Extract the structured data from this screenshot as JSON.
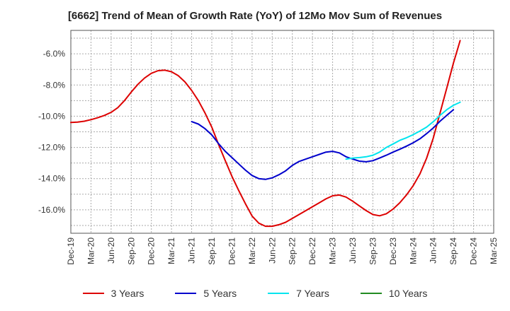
{
  "chart_data": {
    "type": "line",
    "title": "[6662]  Trend of Mean of Growth Rate (YoY) of 12Mo Mov Sum of Revenues",
    "xlabel": "",
    "ylabel": "",
    "x_ticks": [
      "Dec-19",
      "Mar-20",
      "Jun-20",
      "Sep-20",
      "Dec-20",
      "Mar-21",
      "Jun-21",
      "Sep-21",
      "Dec-21",
      "Mar-22",
      "Jun-22",
      "Sep-22",
      "Dec-22",
      "Mar-23",
      "Jun-23",
      "Sep-23",
      "Dec-23",
      "Mar-24",
      "Jun-24",
      "Sep-24",
      "Dec-24",
      "Mar-25"
    ],
    "y_ticks": [
      "-6.0%",
      "-8.0%",
      "-10.0%",
      "-12.0%",
      "-14.0%",
      "-16.0%"
    ],
    "y_tick_values": [
      -6,
      -8,
      -10,
      -12,
      -14,
      -16
    ],
    "ylim": [
      -17.5,
      -4.5
    ],
    "x_range_months": [
      0,
      63
    ],
    "grid": true,
    "legend_position": "bottom",
    "series": [
      {
        "name": "3 Years",
        "color": "#dd0000",
        "points": [
          [
            0,
            -10.4
          ],
          [
            1,
            -10.38
          ],
          [
            2,
            -10.32
          ],
          [
            3,
            -10.22
          ],
          [
            4,
            -10.1
          ],
          [
            5,
            -9.95
          ],
          [
            6,
            -9.75
          ],
          [
            7,
            -9.45
          ],
          [
            8,
            -9.0
          ],
          [
            9,
            -8.45
          ],
          [
            10,
            -7.95
          ],
          [
            11,
            -7.55
          ],
          [
            12,
            -7.25
          ],
          [
            13,
            -7.08
          ],
          [
            14,
            -7.05
          ],
          [
            15,
            -7.15
          ],
          [
            16,
            -7.4
          ],
          [
            17,
            -7.8
          ],
          [
            18,
            -8.35
          ],
          [
            19,
            -9.0
          ],
          [
            20,
            -9.8
          ],
          [
            21,
            -10.7
          ],
          [
            22,
            -11.8
          ],
          [
            23,
            -12.85
          ],
          [
            24,
            -13.85
          ],
          [
            25,
            -14.75
          ],
          [
            26,
            -15.6
          ],
          [
            27,
            -16.4
          ],
          [
            28,
            -16.85
          ],
          [
            29,
            -17.05
          ],
          [
            30,
            -17.05
          ],
          [
            31,
            -16.95
          ],
          [
            32,
            -16.8
          ],
          [
            33,
            -16.55
          ],
          [
            34,
            -16.3
          ],
          [
            35,
            -16.05
          ],
          [
            36,
            -15.8
          ],
          [
            37,
            -15.55
          ],
          [
            38,
            -15.3
          ],
          [
            39,
            -15.1
          ],
          [
            40,
            -15.05
          ],
          [
            41,
            -15.18
          ],
          [
            42,
            -15.45
          ],
          [
            43,
            -15.75
          ],
          [
            44,
            -16.05
          ],
          [
            45,
            -16.3
          ],
          [
            46,
            -16.38
          ],
          [
            47,
            -16.25
          ],
          [
            48,
            -15.95
          ],
          [
            49,
            -15.55
          ],
          [
            50,
            -15.05
          ],
          [
            51,
            -14.45
          ],
          [
            52,
            -13.7
          ],
          [
            53,
            -12.7
          ],
          [
            54,
            -11.4
          ],
          [
            55,
            -9.8
          ],
          [
            56,
            -8.2
          ],
          [
            57,
            -6.6
          ],
          [
            58,
            -5.15
          ]
        ]
      },
      {
        "name": "5 Years",
        "color": "#0000cc",
        "points": [
          [
            18,
            -10.35
          ],
          [
            19,
            -10.5
          ],
          [
            20,
            -10.8
          ],
          [
            21,
            -11.2
          ],
          [
            22,
            -11.75
          ],
          [
            23,
            -12.25
          ],
          [
            24,
            -12.65
          ],
          [
            25,
            -13.05
          ],
          [
            26,
            -13.45
          ],
          [
            27,
            -13.8
          ],
          [
            28,
            -14.0
          ],
          [
            29,
            -14.05
          ],
          [
            30,
            -13.95
          ],
          [
            31,
            -13.75
          ],
          [
            32,
            -13.5
          ],
          [
            33,
            -13.15
          ],
          [
            34,
            -12.9
          ],
          [
            35,
            -12.75
          ],
          [
            36,
            -12.6
          ],
          [
            37,
            -12.45
          ],
          [
            38,
            -12.3
          ],
          [
            39,
            -12.25
          ],
          [
            40,
            -12.35
          ],
          [
            41,
            -12.6
          ],
          [
            42,
            -12.75
          ],
          [
            43,
            -12.88
          ],
          [
            44,
            -12.92
          ],
          [
            45,
            -12.85
          ],
          [
            46,
            -12.68
          ],
          [
            47,
            -12.5
          ],
          [
            48,
            -12.3
          ],
          [
            49,
            -12.12
          ],
          [
            50,
            -11.92
          ],
          [
            51,
            -11.7
          ],
          [
            52,
            -11.45
          ],
          [
            53,
            -11.12
          ],
          [
            54,
            -10.75
          ],
          [
            55,
            -10.32
          ],
          [
            56,
            -9.95
          ],
          [
            57,
            -9.58
          ]
        ]
      },
      {
        "name": "7 Years",
        "color": "#00e5ee",
        "points": [
          [
            41,
            -12.75
          ],
          [
            42,
            -12.68
          ],
          [
            43,
            -12.65
          ],
          [
            44,
            -12.6
          ],
          [
            45,
            -12.5
          ],
          [
            46,
            -12.3
          ],
          [
            47,
            -12.0
          ],
          [
            48,
            -11.78
          ],
          [
            49,
            -11.55
          ],
          [
            50,
            -11.38
          ],
          [
            51,
            -11.18
          ],
          [
            52,
            -10.95
          ],
          [
            53,
            -10.7
          ],
          [
            54,
            -10.35
          ],
          [
            55,
            -9.95
          ],
          [
            56,
            -9.58
          ],
          [
            57,
            -9.3
          ],
          [
            58,
            -9.1
          ]
        ]
      },
      {
        "name": "10 Years",
        "color": "#228b22",
        "points": []
      }
    ]
  }
}
